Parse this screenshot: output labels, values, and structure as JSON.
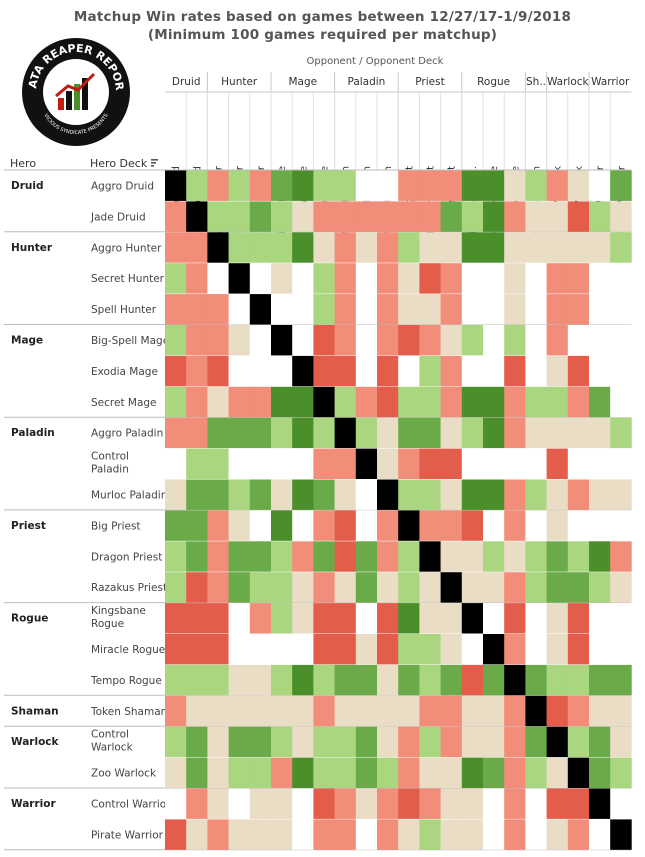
{
  "title_line1": "Matchup Win rates based on games between 12/27/17-1/9/2018",
  "title_line2": "(Minimum 100 games required per matchup)",
  "logo": {
    "text_top": "DATA REAPER REPORT",
    "text_bottom": "VICIOUS SYNDICATE PRESENTS"
  },
  "axis": {
    "columns_caption": "Opponent  /  Opponent Deck",
    "rows_hero": "Hero",
    "rows_deck": "Hero Deck"
  },
  "colors": {
    "dark_green": "#4a8f2a",
    "mid_green": "#6aaa48",
    "light_green": "#a9d67f",
    "beige": "#eaddc6",
    "white": "#ffffff",
    "light_red": "#f28d7a",
    "mid_red": "#e45d4a",
    "dark_red": "#c21d12",
    "self": "#000000"
  },
  "chart_data": {
    "type": "heatmap",
    "title": "Matchup Win rates based on games between 12/27/17-1/9/2018",
    "subtitle": "(Minimum 100 games required per matchup)",
    "legend": "none",
    "hero_groups": [
      {
        "hero": "Druid",
        "decks": [
          "Aggro Druid",
          "Jade Druid"
        ]
      },
      {
        "hero": "Hunter",
        "decks": [
          "Aggro Hunter",
          "Secret Hunter",
          "Spell Hunter"
        ]
      },
      {
        "hero": "Mage",
        "decks": [
          "Big-Spell Mage",
          "Exodia Mage",
          "Secret Mage"
        ]
      },
      {
        "hero": "Paladin",
        "decks": [
          "Aggro Paladin",
          "Control Paladin",
          "Murloc Paladin"
        ]
      },
      {
        "hero": "Priest",
        "decks": [
          "Big Priest",
          "Dragon Priest",
          "Razakus Priest"
        ]
      },
      {
        "hero": "Rogue",
        "decks": [
          "Kingsbane Rogue",
          "Miracle Rogue",
          "Tempo Rogue"
        ]
      },
      {
        "hero": "Shaman",
        "decks": [
          "Token Shaman"
        ]
      },
      {
        "hero": "Warlock",
        "decks": [
          "Control Warlock",
          "Zoo Warlock"
        ]
      },
      {
        "hero": "Warrior",
        "decks": [
          "Control Warrior",
          "Pirate Warrior"
        ]
      }
    ],
    "column_group_labels": [
      "Druid",
      "Hunter",
      "Mage",
      "Paladin",
      "Priest",
      "Rogue",
      "Sh..",
      "Warlock",
      "Warrior"
    ],
    "column_labels": [
      "Aggro Druid",
      "Jade Druid",
      "Aggro Hunter",
      "Secret Hunter",
      "Spell Hunter",
      "Big-Spell Mage",
      "Exodia Mage",
      "Secret Mage",
      "Aggro Paladin",
      "Control Paladin",
      "Murloc Paladin",
      "Big Priest",
      "Dragon Priest",
      "Razakus Priest",
      "Kingsbane Ro..",
      "Miracle Rogue",
      "Tempo Rogue",
      "Token Shaman",
      "Control Warlock",
      "Zoo Warlock",
      "Control Warrior",
      "Pirate Warrior"
    ],
    "row_labels": [
      "Aggro Druid",
      "Jade Druid",
      "Aggro Hunter",
      "Secret Hunter",
      "Spell Hunter",
      "Big-Spell Mage",
      "Exodia Mage",
      "Secret Mage",
      "Aggro Paladin",
      "Control Paladin",
      "Murloc Paladin",
      "Big Priest",
      "Dragon Priest",
      "Razakus Priest",
      "Kingsbane Rogue",
      "Miracle Rogue",
      "Tempo Rogue",
      "Token Shaman",
      "Control Warlock",
      "Zoo Warlock",
      "Control Warrior",
      "Pirate Warrior"
    ],
    "cells": [
      "XLRLRMGLLWWRRRGGBLRBWM",
      "RXLLMLBRRRRRRMLGRBBDLB",
      "RRXLLLGBRBRLBBGGBBBBBL",
      "LRWXWBWLRWRBDRWWBWRRWW",
      "RRRWXWWLRWRBBRWWBWRRWW",
      "LRRBWXWDRWRDRBLWLWRWWW",
      "DRDWWWXDDWDWLRWWDWBDWW",
      "LRBRRGGXLRDLLRGGRLLRMW",
      "RRMMMLGLXLBMMBLGRBBBBL",
      "WLLWWWWRRXBRDDWWWWDWWW",
      "BMMLMBGMBWXLLBGGRLBRBB",
      "MMRBWGWRDWRXRRDWRWBWWW",
      "LMRMMLRMDMRLXBBLBLMLGR",
      "LDRMLLBRBMBLBXBBRLMMLB",
      "DDDWRLBDDWDGBBXWDWBDWW",
      "DDDWWWWDDBDLLBWXRWBDWW",
      "LLLBBLGLMMBMLMDMXMLLMM",
      "RBBBBBBRBBBBRRBBRXDRBB",
      "LMBMMLBLLMBRLRBBRMXLMB",
      "BMBLLRGLLMLRBBGMRLBXML",
      "WRBWBBWDRBRDRBBWRWDDXW",
      "DBRBBBWRRWRBLBBWRWBRWX"
    ],
    "cell_code_key": {
      "G": "dark green (strongly favored)",
      "M": "mid green",
      "L": "light green (favored)",
      "B": "beige (even)",
      "W": "white (insufficient games)",
      "R": "light red (unfavored)",
      "D": "dark red (strongly unfavored)",
      "X": "mirror (black)"
    }
  }
}
